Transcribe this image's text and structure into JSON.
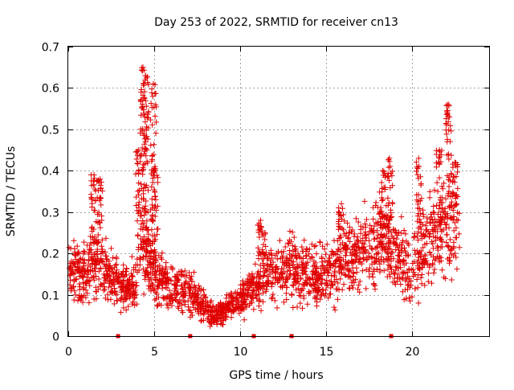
{
  "chart_data": {
    "type": "scatter",
    "title": "Day 253 of 2022, SRMTID for receiver cn13",
    "xlabel": "GPS time / hours",
    "ylabel": "SRMTID / TECUs",
    "xlim": [
      0,
      24.5
    ],
    "ylim": [
      0,
      0.7
    ],
    "x_ticks": [
      0,
      5,
      10,
      15,
      20
    ],
    "x_tick_labels": [
      "0",
      "5",
      "10",
      "15",
      "20"
    ],
    "y_ticks": [
      0,
      0.1,
      0.2,
      0.3,
      0.4,
      0.5,
      0.6,
      0.7
    ],
    "y_tick_labels": [
      "0",
      "0.1",
      "0.2",
      "0.3",
      "0.4",
      "0.5",
      "0.6",
      "0.7"
    ],
    "grid": true,
    "marker": "plus",
    "color": "#e00000",
    "time_span_hours": [
      0,
      22.8
    ],
    "trend": [
      [
        0.0,
        0.16
      ],
      [
        0.5,
        0.15
      ],
      [
        1.0,
        0.14
      ],
      [
        1.5,
        0.2
      ],
      [
        2.0,
        0.17
      ],
      [
        2.5,
        0.14
      ],
      [
        3.0,
        0.12
      ],
      [
        3.5,
        0.12
      ],
      [
        4.0,
        0.14
      ],
      [
        4.4,
        0.2
      ],
      [
        4.8,
        0.18
      ],
      [
        5.2,
        0.14
      ],
      [
        6.0,
        0.12
      ],
      [
        7.0,
        0.11
      ],
      [
        8.0,
        0.07
      ],
      [
        8.5,
        0.05
      ],
      [
        9.0,
        0.06
      ],
      [
        9.5,
        0.08
      ],
      [
        10.0,
        0.09
      ],
      [
        10.5,
        0.11
      ],
      [
        11.0,
        0.12
      ],
      [
        11.5,
        0.17
      ],
      [
        12.0,
        0.15
      ],
      [
        13.0,
        0.17
      ],
      [
        14.0,
        0.15
      ],
      [
        15.0,
        0.15
      ],
      [
        16.0,
        0.18
      ],
      [
        17.0,
        0.2
      ],
      [
        18.0,
        0.22
      ],
      [
        18.5,
        0.23
      ],
      [
        19.0,
        0.2
      ],
      [
        19.5,
        0.17
      ],
      [
        20.0,
        0.17
      ],
      [
        21.0,
        0.22
      ],
      [
        22.0,
        0.26
      ],
      [
        22.8,
        0.28
      ]
    ],
    "spikes": [
      {
        "x": 1.5,
        "y": 0.39
      },
      {
        "x": 1.85,
        "y": 0.38
      },
      {
        "x": 4.1,
        "y": 0.45
      },
      {
        "x": 4.35,
        "y": 0.65
      },
      {
        "x": 4.5,
        "y": 0.63
      },
      {
        "x": 4.95,
        "y": 0.61
      },
      {
        "x": 5.05,
        "y": 0.41
      },
      {
        "x": 11.2,
        "y": 0.28
      },
      {
        "x": 15.9,
        "y": 0.32
      },
      {
        "x": 18.3,
        "y": 0.4
      },
      {
        "x": 18.7,
        "y": 0.43
      },
      {
        "x": 20.4,
        "y": 0.43
      },
      {
        "x": 21.6,
        "y": 0.45
      },
      {
        "x": 22.15,
        "y": 0.56
      },
      {
        "x": 22.5,
        "y": 0.42
      }
    ],
    "gap_markers": [
      2.9,
      7.1,
      10.8,
      13.0,
      18.8
    ]
  }
}
